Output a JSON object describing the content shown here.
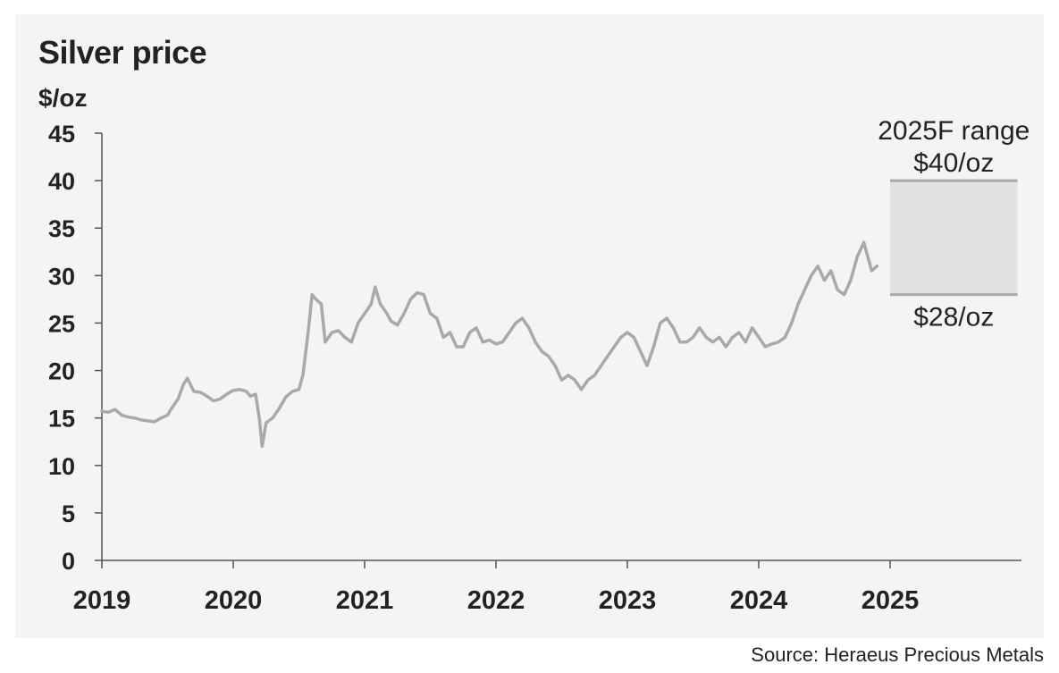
{
  "chart_data": {
    "type": "line",
    "title": "Silver price",
    "ylabel": "$/oz",
    "source": "Source: Heraeus Precious Metals",
    "ylim": [
      0,
      45
    ],
    "yticks": [
      "0",
      "5",
      "10",
      "15",
      "20",
      "25",
      "30",
      "35",
      "40",
      "45"
    ],
    "xlim": [
      2019,
      2026
    ],
    "xticks": [
      "2019",
      "2020",
      "2021",
      "2022",
      "2023",
      "2024",
      "2025"
    ],
    "grid": false,
    "colors": {
      "line": "#a9a9a9",
      "band": "#e2e2e2",
      "band_edge": "#a9a9a9",
      "axis": "#555555"
    },
    "series": [
      {
        "x": [
          2019.0,
          2019.05,
          2019.1,
          2019.15,
          2019.2,
          2019.25,
          2019.3,
          2019.35,
          2019.4,
          2019.45,
          2019.5,
          2019.53,
          2019.58,
          2019.62,
          2019.65,
          2019.7,
          2019.75,
          2019.8,
          2019.85,
          2019.9,
          2019.95,
          2020.0,
          2020.05,
          2020.1,
          2020.13,
          2020.17,
          2020.2,
          2020.22,
          2020.25,
          2020.3,
          2020.35,
          2020.4,
          2020.45,
          2020.5,
          2020.53,
          2020.57,
          2020.6,
          2020.63,
          2020.67,
          2020.7,
          2020.75,
          2020.8,
          2020.85,
          2020.9,
          2020.95,
          2021.0,
          2021.05,
          2021.08,
          2021.12,
          2021.17,
          2021.2,
          2021.25,
          2021.3,
          2021.35,
          2021.4,
          2021.45,
          2021.5,
          2021.55,
          2021.6,
          2021.65,
          2021.7,
          2021.75,
          2021.8,
          2021.85,
          2021.9,
          2021.95,
          2022.0,
          2022.05,
          2022.1,
          2022.15,
          2022.2,
          2022.25,
          2022.3,
          2022.35,
          2022.4,
          2022.45,
          2022.5,
          2022.55,
          2022.6,
          2022.65,
          2022.7,
          2022.75,
          2022.8,
          2022.85,
          2022.9,
          2022.95,
          2023.0,
          2023.05,
          2023.1,
          2023.15,
          2023.2,
          2023.25,
          2023.3,
          2023.35,
          2023.4,
          2023.45,
          2023.5,
          2023.55,
          2023.6,
          2023.65,
          2023.7,
          2023.75,
          2023.8,
          2023.85,
          2023.9,
          2023.95,
          2024.0,
          2024.05,
          2024.1,
          2024.15,
          2024.2,
          2024.25,
          2024.3,
          2024.35,
          2024.4,
          2024.45,
          2024.5,
          2024.55,
          2024.6,
          2024.65,
          2024.7,
          2024.75,
          2024.8,
          2024.83,
          2024.86,
          2024.9
        ],
        "y": [
          15.7,
          15.6,
          15.9,
          15.3,
          15.1,
          15.0,
          14.8,
          14.7,
          14.6,
          15.0,
          15.3,
          16.0,
          17.0,
          18.5,
          19.2,
          17.8,
          17.7,
          17.3,
          16.8,
          17.0,
          17.5,
          17.9,
          18.0,
          17.8,
          17.3,
          17.5,
          14.8,
          12.0,
          14.5,
          15.0,
          16.0,
          17.2,
          17.8,
          18.0,
          19.5,
          24.0,
          28.0,
          27.5,
          27.0,
          23.0,
          24.0,
          24.2,
          23.5,
          23.0,
          25.0,
          26.0,
          27.0,
          28.8,
          27.0,
          26.0,
          25.2,
          24.8,
          26.0,
          27.5,
          28.2,
          28.0,
          26.0,
          25.5,
          23.5,
          24.0,
          22.5,
          22.5,
          24.0,
          24.5,
          23.0,
          23.2,
          22.8,
          23.0,
          24.0,
          25.0,
          25.5,
          24.5,
          23.0,
          22.0,
          21.5,
          20.5,
          19.0,
          19.5,
          19.0,
          18.0,
          19.0,
          19.5,
          20.5,
          21.5,
          22.5,
          23.5,
          24.0,
          23.5,
          22.0,
          20.5,
          22.5,
          25.0,
          25.5,
          24.5,
          23.0,
          23.0,
          23.5,
          24.5,
          23.5,
          23.0,
          23.5,
          22.5,
          23.5,
          24.0,
          23.0,
          24.5,
          23.5,
          22.5,
          22.8,
          23.0,
          23.5,
          25.0,
          27.0,
          28.5,
          30.0,
          31.0,
          29.5,
          30.5,
          28.5,
          28.0,
          29.5,
          32.0,
          33.5,
          32.0,
          30.5,
          31.0
        ]
      }
    ],
    "forecast": {
      "label": "2025F range",
      "high": 40,
      "low": 28,
      "high_label": "$40/oz",
      "low_label": "$28/oz",
      "x_start": 2025.0,
      "x_end": 2025.97
    }
  }
}
